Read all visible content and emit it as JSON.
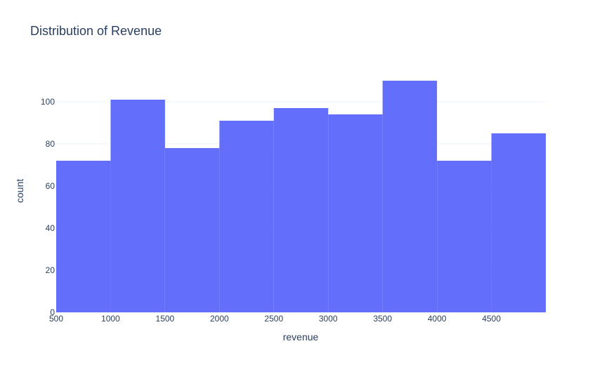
{
  "colors": {
    "bar": "#636efa",
    "text": "#2a3f5f",
    "grid": "#ebf0f8",
    "background": "#ffffff"
  },
  "chart_data": {
    "type": "bar",
    "title": "Distribution of Revenue",
    "xlabel": "revenue",
    "ylabel": "count",
    "bins": [
      {
        "start": 500,
        "end": 1000,
        "count": 72
      },
      {
        "start": 1000,
        "end": 1500,
        "count": 101
      },
      {
        "start": 1500,
        "end": 2000,
        "count": 78
      },
      {
        "start": 2000,
        "end": 2500,
        "count": 91
      },
      {
        "start": 2500,
        "end": 3000,
        "count": 97
      },
      {
        "start": 3000,
        "end": 3500,
        "count": 94
      },
      {
        "start": 3500,
        "end": 4000,
        "count": 110
      },
      {
        "start": 4000,
        "end": 4500,
        "count": 72
      },
      {
        "start": 4500,
        "end": 5000,
        "count": 85
      }
    ],
    "xlim": [
      500,
      5000
    ],
    "ylim": [
      0,
      115
    ],
    "x_ticks": [
      "500",
      "1000",
      "1500",
      "2000",
      "2500",
      "3000",
      "3500",
      "4000",
      "4500"
    ],
    "y_ticks": [
      "0",
      "20",
      "40",
      "60",
      "80",
      "100"
    ],
    "grid": true,
    "legend": "none"
  }
}
